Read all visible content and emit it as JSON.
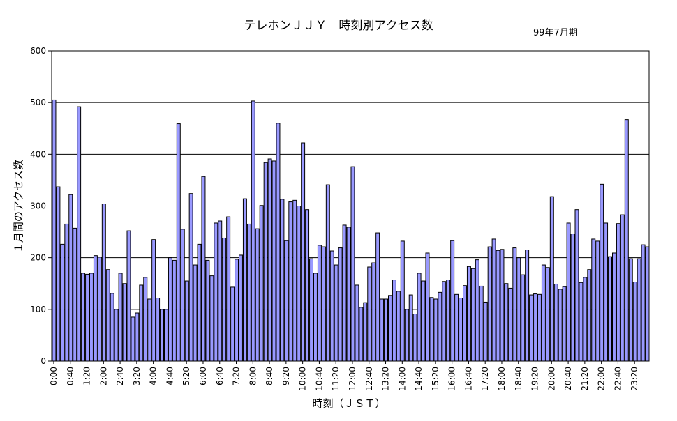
{
  "chart_data": {
    "type": "bar",
    "title": "テレホンＪＪＹ　時刻別アクセス数",
    "subtitle": "99年7月期",
    "xlabel": "時刻（ＪＳＴ）",
    "ylabel": "１月間のアクセス数",
    "ylim": [
      0,
      600
    ],
    "yticks": [
      "0",
      "100",
      "200",
      "300",
      "400",
      "500",
      "600"
    ],
    "grid": true,
    "colors": {
      "bar_fill": "#9999ff",
      "bar_stroke": "#000000",
      "grid": "#000000",
      "background": "#ffffff"
    },
    "categories": [
      "0:00",
      "0:10",
      "0:20",
      "0:30",
      "0:40",
      "0:50",
      "1:00",
      "1:10",
      "1:20",
      "1:30",
      "1:40",
      "1:50",
      "2:00",
      "2:10",
      "2:20",
      "2:30",
      "2:40",
      "2:50",
      "3:00",
      "3:10",
      "3:20",
      "3:30",
      "3:40",
      "3:50",
      "4:00",
      "4:10",
      "4:20",
      "4:30",
      "4:40",
      "4:50",
      "5:00",
      "5:10",
      "5:20",
      "5:30",
      "5:40",
      "5:50",
      "6:00",
      "6:10",
      "6:20",
      "6:30",
      "6:40",
      "6:50",
      "7:00",
      "7:10",
      "7:20",
      "7:30",
      "7:40",
      "7:50",
      "8:00",
      "8:10",
      "8:20",
      "8:30",
      "8:40",
      "8:50",
      "9:00",
      "9:10",
      "9:20",
      "9:30",
      "9:40",
      "9:50",
      "10:00",
      "10:10",
      "10:20",
      "10:30",
      "10:40",
      "10:50",
      "11:00",
      "11:10",
      "11:20",
      "11:30",
      "11:40",
      "11:50",
      "12:00",
      "12:10",
      "12:20",
      "12:30",
      "12:40",
      "12:50",
      "13:00",
      "13:10",
      "13:20",
      "13:30",
      "13:40",
      "13:50",
      "14:00",
      "14:10",
      "14:20",
      "14:30",
      "14:40",
      "14:50",
      "15:00",
      "15:10",
      "15:20",
      "15:30",
      "15:40",
      "15:50",
      "16:00",
      "16:10",
      "16:20",
      "16:30",
      "16:40",
      "16:50",
      "17:00",
      "17:10",
      "17:20",
      "17:30",
      "17:40",
      "17:50",
      "18:00",
      "18:10",
      "18:20",
      "18:30",
      "18:40",
      "18:50",
      "19:00",
      "19:10",
      "19:20",
      "19:30",
      "19:40",
      "19:50",
      "20:00",
      "20:10",
      "20:20",
      "20:30",
      "20:40",
      "20:50",
      "21:00",
      "21:10",
      "21:20",
      "21:30",
      "21:40",
      "21:50",
      "22:00",
      "22:10",
      "22:20",
      "22:30",
      "22:40",
      "22:50",
      "23:00",
      "23:10",
      "23:20",
      "23:30",
      "23:40",
      "23:50"
    ],
    "tick_labels": [
      "0:00",
      "0:40",
      "1:20",
      "2:00",
      "2:40",
      "3:20",
      "4:00",
      "4:40",
      "5:20",
      "6:00",
      "6:40",
      "7:20",
      "8:00",
      "8:40",
      "9:20",
      "10:00",
      "10:40",
      "11:20",
      "12:00",
      "12:40",
      "13:20",
      "14:00",
      "14:40",
      "15:20",
      "16:00",
      "16:40",
      "17:20",
      "18:00",
      "18:40",
      "19:20",
      "20:00",
      "20:40",
      "21:20",
      "22:00",
      "22:40",
      "23:20"
    ],
    "values": [
      505,
      337,
      226,
      265,
      322,
      257,
      492,
      170,
      168,
      170,
      204,
      201,
      304,
      177,
      131,
      100,
      170,
      150,
      252,
      85,
      93,
      147,
      162,
      120,
      235,
      122,
      100,
      100,
      200,
      195,
      459,
      255,
      155,
      324,
      186,
      226,
      357,
      195,
      165,
      267,
      271,
      238,
      279,
      143,
      197,
      205,
      314,
      265,
      503,
      256,
      301,
      384,
      391,
      387,
      460,
      313,
      233,
      308,
      311,
      300,
      422,
      293,
      198,
      170,
      224,
      221,
      341,
      213,
      186,
      219,
      263,
      259,
      376,
      147,
      104,
      113,
      182,
      190,
      248,
      120,
      120,
      127,
      157,
      135,
      232,
      100,
      128,
      91,
      170,
      155,
      209,
      123,
      120,
      133,
      154,
      157,
      233,
      129,
      122,
      146,
      183,
      179,
      196,
      145,
      114,
      221,
      236,
      214,
      216,
      150,
      141,
      219,
      200,
      167,
      215,
      128,
      130,
      129,
      186,
      181,
      318,
      149,
      139,
      144,
      267,
      246,
      293,
      152,
      162,
      177,
      236,
      232,
      342,
      267,
      202,
      209,
      266,
      283,
      467,
      198,
      153,
      198,
      225,
      221
    ]
  }
}
